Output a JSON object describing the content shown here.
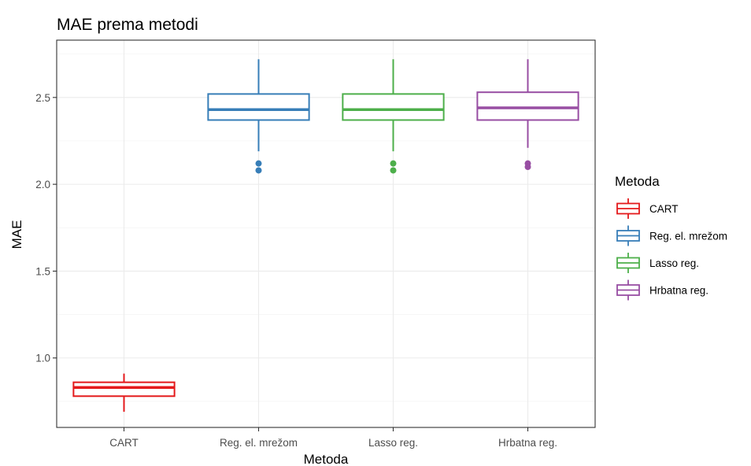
{
  "chart_data": {
    "type": "boxplot",
    "title": "MAE prema metodi",
    "xlabel": "Metoda",
    "ylabel": "MAE",
    "ylim": [
      0.6,
      2.83
    ],
    "y_ticks": [
      1.0,
      1.5,
      2.0,
      2.5
    ],
    "y_tick_labels": [
      "1.0",
      "1.5",
      "2.0",
      "2.5"
    ],
    "grid": true,
    "legend_title": "Metoda",
    "legend_position": "right",
    "categories": [
      "CART",
      "Reg. el. mrežom",
      "Lasso reg.",
      "Hrbatna reg."
    ],
    "series": [
      {
        "name": "CART",
        "color": "#e41a1c",
        "whisker_low": 0.69,
        "q1": 0.78,
        "median": 0.83,
        "q3": 0.86,
        "whisker_high": 0.91,
        "outliers": []
      },
      {
        "name": "Reg. el. mrežom",
        "color": "#377eb8",
        "whisker_low": 2.19,
        "q1": 2.37,
        "median": 2.43,
        "q3": 2.52,
        "whisker_high": 2.72,
        "outliers": [
          2.12,
          2.08
        ]
      },
      {
        "name": "Lasso reg.",
        "color": "#4daf4a",
        "whisker_low": 2.19,
        "q1": 2.37,
        "median": 2.43,
        "q3": 2.52,
        "whisker_high": 2.72,
        "outliers": [
          2.12,
          2.08
        ]
      },
      {
        "name": "Hrbatna reg.",
        "color": "#984ea3",
        "whisker_low": 2.21,
        "q1": 2.37,
        "median": 2.44,
        "q3": 2.53,
        "whisker_high": 2.72,
        "outliers": [
          2.12,
          2.1
        ]
      }
    ]
  }
}
